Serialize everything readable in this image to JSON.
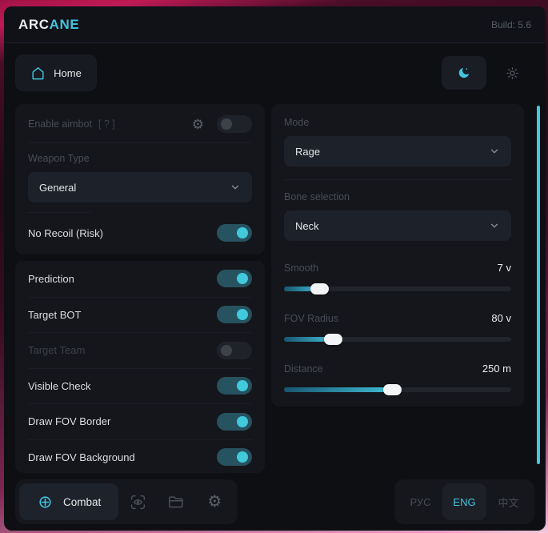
{
  "header": {
    "brand_primary": "ARC",
    "brand_accent": "ANE",
    "build": "Build: 5.6"
  },
  "nav": {
    "home_label": "Home"
  },
  "aimbot_panel": {
    "enable_label": "Enable aimbot",
    "enable_hint": "[ ? ]",
    "enable_on": false,
    "weapon_type_label": "Weapon Type",
    "weapon_type_value": "General",
    "no_recoil_label": "No Recoil (Risk)",
    "no_recoil_on": true
  },
  "toggle_rows": [
    {
      "label": "Prediction",
      "on": true,
      "disabled": false
    },
    {
      "label": "Target BOT",
      "on": true,
      "disabled": false
    },
    {
      "label": "Target Team",
      "on": false,
      "disabled": true
    },
    {
      "label": "Visible Check",
      "on": true,
      "disabled": false
    },
    {
      "label": "Draw FOV Border",
      "on": true,
      "disabled": false
    },
    {
      "label": "Draw FOV Background",
      "on": true,
      "disabled": false
    }
  ],
  "target_panel": {
    "mode_label": "Mode",
    "mode_value": "Rage",
    "bone_label": "Bone selection",
    "bone_value": "Neck",
    "sliders": [
      {
        "label": "Smooth",
        "value": "7 v",
        "percent": 16
      },
      {
        "label": "FOV Radius",
        "value": "80 v",
        "percent": 22
      },
      {
        "label": "Distance",
        "value": "250 m",
        "percent": 48
      }
    ]
  },
  "footer": {
    "combat_label": "Combat",
    "languages": [
      {
        "label": "РУС",
        "active": false
      },
      {
        "label": "ENG",
        "active": true
      },
      {
        "label": "中文",
        "active": false
      }
    ]
  },
  "icons": {
    "gear": "⚙",
    "names": [
      "home-icon",
      "moon-icon",
      "sun-icon",
      "gear-icon",
      "chevron-down-icon",
      "crosshair-icon",
      "eye-scan-icon",
      "folder-icon"
    ]
  },
  "colors": {
    "accent": "#41c4e0",
    "toggle_on_track": "#27525f",
    "toggle_on_knob": "#41c9dc",
    "slider_fill_end": "#41bdd8",
    "scrollbar": "#45c8dc",
    "card_bg": "#14161c",
    "window_bg": "#0d0f13"
  }
}
